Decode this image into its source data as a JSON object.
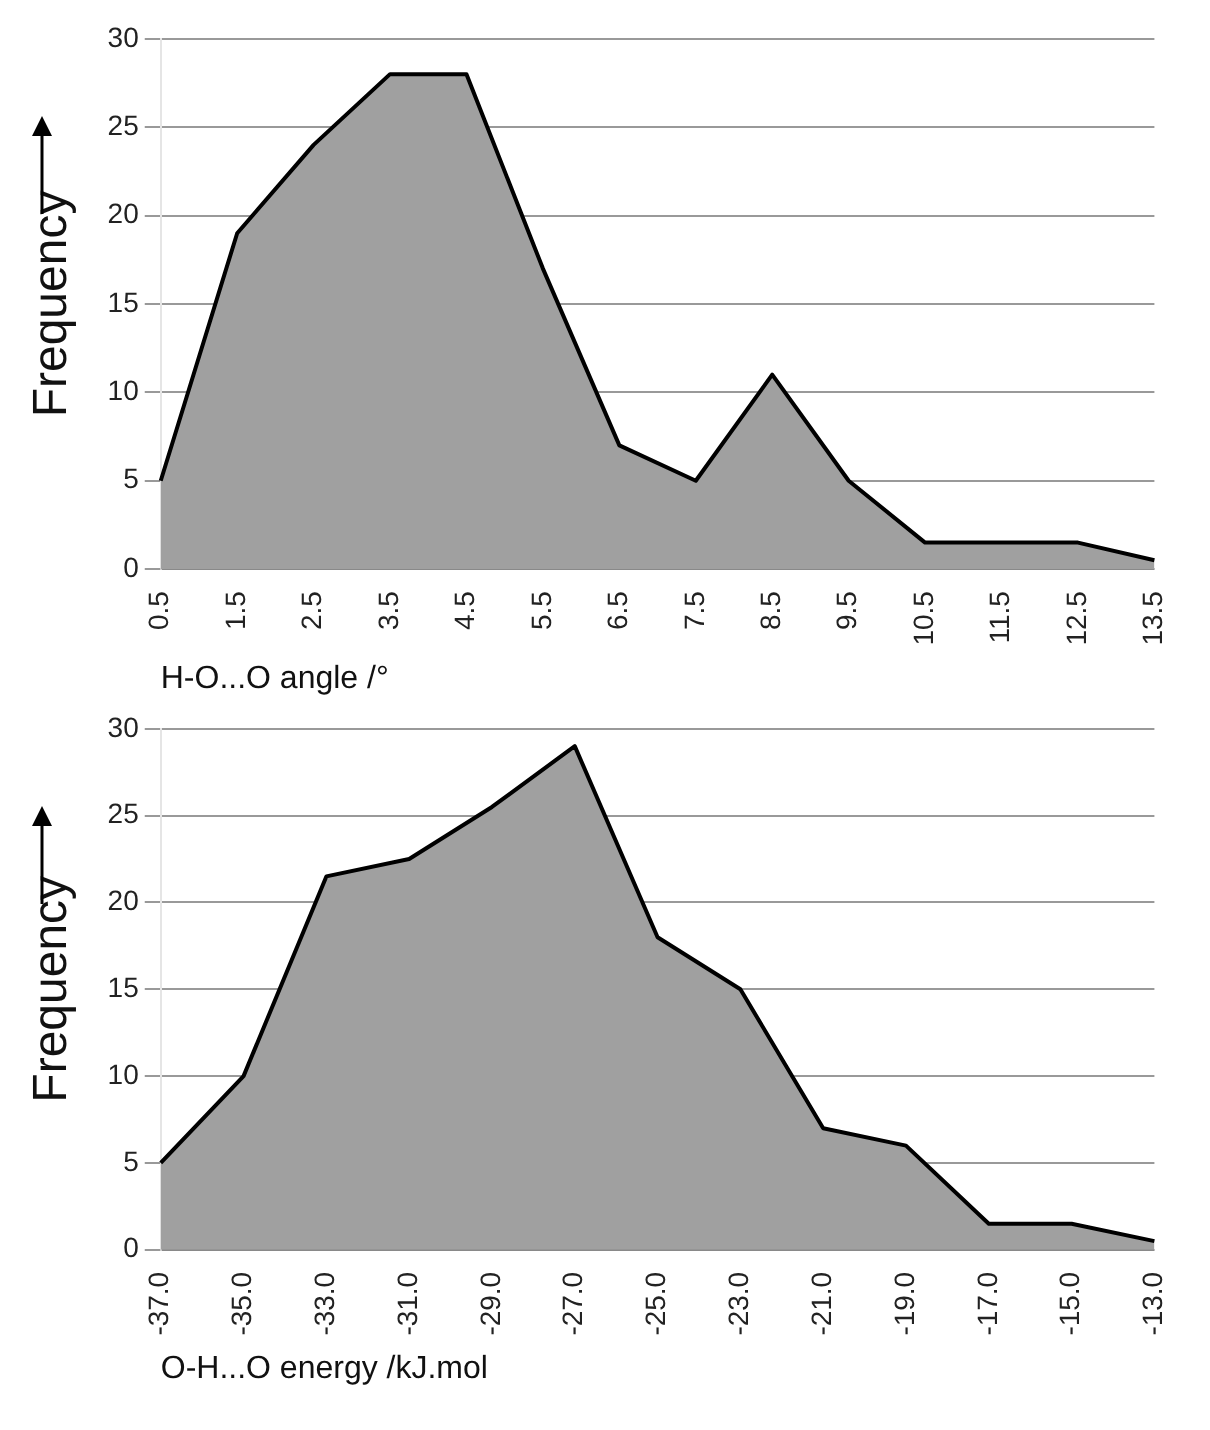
{
  "chart_data": [
    {
      "type": "area",
      "xlabel": "H-O...O angle /°",
      "ylabel": "Frequency",
      "categories": [
        "0.5",
        "1.5",
        "2.5",
        "3.5",
        "4.5",
        "5.5",
        "6.5",
        "7.5",
        "8.5",
        "9.5",
        "10.5",
        "11.5",
        "12.5",
        "13.5"
      ],
      "values": [
        5,
        19,
        24,
        28,
        28,
        17,
        7,
        5,
        11,
        5,
        1.5,
        1.5,
        1.5,
        0.5
      ],
      "color": "#a0a0a0",
      "ylim": [
        0,
        30
      ],
      "yticks": [
        0,
        5,
        10,
        15,
        20,
        25,
        30
      ],
      "grid": "y"
    },
    {
      "type": "area",
      "xlabel": "O-H...O energy /kJ.mol",
      "ylabel": "Frequency",
      "categories": [
        "-37.0",
        "-35.0",
        "-33.0",
        "-31.0",
        "-29.0",
        "-27.0",
        "-25.0",
        "-23.0",
        "-21.0",
        "-19.0",
        "-17.0",
        "-15.0",
        "-13.0"
      ],
      "values": [
        5,
        10,
        21.5,
        22.5,
        25.5,
        29,
        18,
        15,
        7,
        6,
        1.5,
        1.5,
        0.5
      ],
      "color": "#a0a0a0",
      "ylim": [
        0,
        30
      ],
      "yticks": [
        0,
        5,
        10,
        15,
        20,
        25,
        30
      ],
      "grid": "y"
    }
  ]
}
